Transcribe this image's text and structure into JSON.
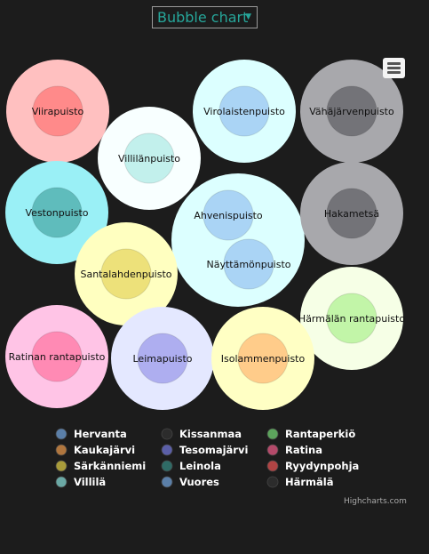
{
  "selector": {
    "value": "Bubble chart"
  },
  "menu": {
    "icon": "hamburger-icon"
  },
  "credit": "Highcharts.com",
  "chart_data": {
    "type": "bubble",
    "title": "",
    "legend_placement": "bottom",
    "points": [
      {
        "name": "Viirapuisto",
        "outer_color": "#ffc0c0",
        "inner_color": "#ff8a8a"
      },
      {
        "name": "Villilänpuisto",
        "outer_color": "#f8ffff",
        "inner_color": "#c2f0ec"
      },
      {
        "name": "Virolaistenpuisto",
        "outer_color": "#dcffff",
        "inner_color": "#aad4f5"
      },
      {
        "name": "Vähäjärvenpuisto",
        "outer_color": "#a8a8ac",
        "inner_color": "#737378"
      },
      {
        "name": "Vestonpuisto",
        "outer_color": "#9af0f6",
        "inner_color": "#5fbcbc"
      },
      {
        "name": "Ahvenispuisto",
        "outer_color": "#dcffff",
        "inner_color": "#aad4f5"
      },
      {
        "name": "Näyttämönpuisto",
        "outer_color": "#dcffff",
        "inner_color": "#aad4f5"
      },
      {
        "name": "Hakametsä",
        "outer_color": "#a8a8ac",
        "inner_color": "#737378"
      },
      {
        "name": "Santalahdenpuisto",
        "outer_color": "#ffffc0",
        "inner_color": "#ede17a"
      },
      {
        "name": "Härmälän rantapuisto",
        "outer_color": "#f6ffe6",
        "inner_color": "#c2f5a8"
      },
      {
        "name": "Ratinan rantapuisto",
        "outer_color": "#ffc4e6",
        "inner_color": "#ff8ab4"
      },
      {
        "name": "Leimapuisto",
        "outer_color": "#e4e8ff",
        "inner_color": "#aeaef0"
      },
      {
        "name": "Isolammenpuisto",
        "outer_color": "#ffffc4",
        "inner_color": "#ffcc8a"
      }
    ],
    "legend": [
      {
        "label": "Hervanta",
        "color": "#5b7fa8"
      },
      {
        "label": "Kissanmaa",
        "color": "#2c2c2c"
      },
      {
        "label": "Rantaperkiö",
        "color": "#5ca35c"
      },
      {
        "label": "Kaukajärvi",
        "color": "#b0763e"
      },
      {
        "label": "Tesomajärvi",
        "color": "#5b5fa8"
      },
      {
        "label": "Ratina",
        "color": "#b44a6a"
      },
      {
        "label": "Särkänniemi",
        "color": "#a89b3a"
      },
      {
        "label": "Leinola",
        "color": "#2f6b66"
      },
      {
        "label": "Ryydynpohja",
        "color": "#b04444"
      },
      {
        "label": "Villilä",
        "color": "#6aa8a4"
      },
      {
        "label": "Vuores",
        "color": "#5b7fa8"
      },
      {
        "label": "Härmälä",
        "color": "#2c2c2c"
      }
    ]
  }
}
